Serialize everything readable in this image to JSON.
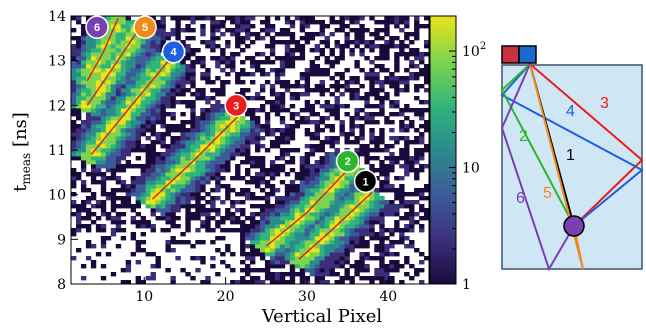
{
  "chart_data": [
    {
      "type": "heatmap",
      "title": "",
      "xlabel": "Vertical Pixel",
      "ylabel_main": "t",
      "ylabel_sub": "meas",
      "ylabel_unit": " [ns]",
      "xlim": [
        1,
        45
      ],
      "ylim": [
        8,
        14
      ],
      "xticks": [
        10,
        20,
        30,
        40
      ],
      "yticks": [
        8,
        9,
        10,
        11,
        12,
        13,
        14
      ],
      "colorbar": {
        "scale": "log",
        "range": [
          1,
          200
        ],
        "tick_labels": [
          {
            "value": 100,
            "main": "10",
            "sup": "2"
          },
          {
            "value": 10,
            "main": "10",
            "sup": ""
          },
          {
            "value": 1,
            "main": "1",
            "sup": ""
          }
        ],
        "colors": [
          "#1a0a3c",
          "#3b2f7a",
          "#3d5a9a",
          "#2a8c8c",
          "#2fb47c",
          "#7fd34e",
          "#e8e419"
        ]
      },
      "series": [
        {
          "name": "1",
          "color": "#000000",
          "x": [
            29,
            33,
            38
          ],
          "y": [
            8.55,
            9.2,
            10.05
          ]
        },
        {
          "name": "2",
          "color": "#2ab82a",
          "x": [
            25,
            30,
            35.5
          ],
          "y": [
            8.85,
            9.6,
            10.65
          ]
        },
        {
          "name": "3",
          "color": "#ee1c1c",
          "x": [
            11,
            16,
            21.5
          ],
          "y": [
            9.9,
            10.75,
            11.75
          ]
        },
        {
          "name": "4",
          "color": "#1c5fe0",
          "x": [
            3.5,
            8,
            13
          ],
          "y": [
            10.9,
            11.9,
            13.0
          ]
        },
        {
          "name": "5",
          "color": "#f28a1a",
          "x": [
            3,
            6,
            9.5
          ],
          "y": [
            12.0,
            12.8,
            13.75
          ]
        },
        {
          "name": "6",
          "color": "#7a3fb0",
          "x": [
            3,
            5,
            6.8
          ],
          "y": [
            12.55,
            13.2,
            13.95
          ]
        }
      ],
      "badges": [
        {
          "name": "1",
          "x": 37.2,
          "y": 10.3
        },
        {
          "name": "2",
          "x": 35.0,
          "y": 10.75
        },
        {
          "name": "3",
          "x": 21.3,
          "y": 12.0
        },
        {
          "name": "4",
          "x": 13.6,
          "y": 13.2
        },
        {
          "name": "5",
          "x": 10.1,
          "y": 13.75
        },
        {
          "name": "6",
          "x": 4.2,
          "y": 13.75
        }
      ]
    }
  ],
  "diagram": {
    "bar_colors": [
      "#c8323c",
      "#1c6ad0"
    ],
    "bar_fill": "#cfe6f4",
    "ball_color": "#7a3fb0",
    "paths": [
      {
        "label": "3",
        "color": "#ee1c1c"
      },
      {
        "label": "4",
        "color": "#1c5fe0"
      },
      {
        "label": "2",
        "color": "#2ab82a"
      },
      {
        "label": "1",
        "color": "#000000"
      },
      {
        "label": "5",
        "color": "#f28a1a"
      },
      {
        "label": "6",
        "color": "#7a3fb0"
      }
    ]
  }
}
